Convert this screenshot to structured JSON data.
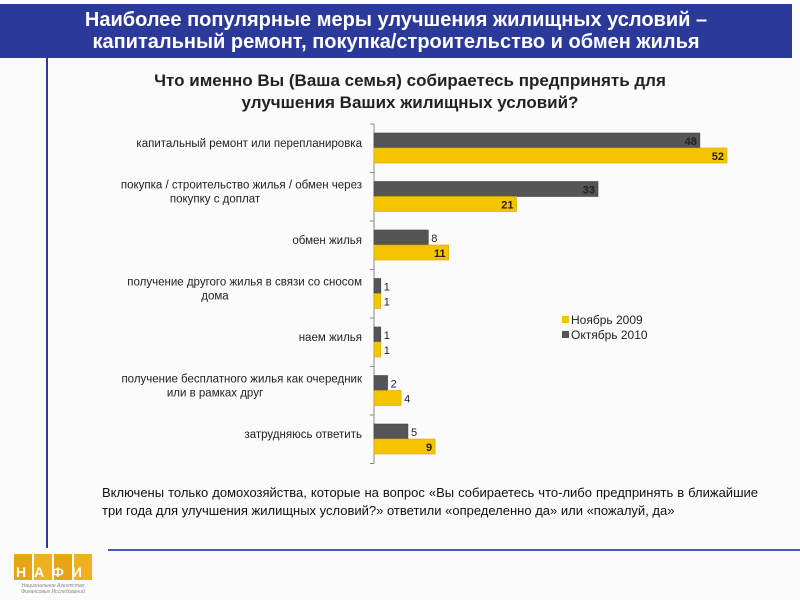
{
  "header": {
    "title_line1": "Наиболее популярные меры улучшения жилищных условий –",
    "title_line2": "капитальный ремонт, покупка/строительство и обмен жилья"
  },
  "subtitle_line1": "Что именно Вы (Ваша семья) собираетесь предпринять для",
  "subtitle_line2": "улучшения Ваших жилищных условий?",
  "note": "Включены только домохозяйства, которые на вопрос «Вы собираетесь что-либо предпринять в ближайшие три года для улучшения жилищных условий?» ответили «определенно да» или «пожалуй, да»",
  "logo": {
    "text": "НАФИ",
    "subtext": "Национальное Агентство Финансовых Исследований"
  },
  "colors": {
    "title_bg": "#2b3a9a",
    "nov2009": "#f5c400",
    "oct2010": "#555555"
  },
  "chart_data": {
    "type": "bar",
    "orientation": "horizontal",
    "categories": [
      [
        "капитальный ремонт или перепланировка"
      ],
      [
        "покупка / строительство жилья / обмен через",
        "покупку с доплат"
      ],
      [
        "обмен жилья"
      ],
      [
        "получение другого жилья в связи со сносом",
        "дома"
      ],
      [
        "наем жилья"
      ],
      [
        "получение бесплатного жилья как очередник",
        "или в рамках друг"
      ],
      [
        "затрудняюсь ответить"
      ]
    ],
    "series": [
      {
        "name": "Октябрь 2010",
        "values": [
          48,
          33,
          8,
          1,
          1,
          2,
          5
        ]
      },
      {
        "name": "Ноябрь 2009",
        "values": [
          52,
          21,
          11,
          1,
          1,
          4,
          9
        ]
      }
    ],
    "legend": [
      "Ноябрь 2009",
      "Октябрь 2010"
    ],
    "legend_position": "right",
    "xlim": [
      0,
      52
    ]
  }
}
